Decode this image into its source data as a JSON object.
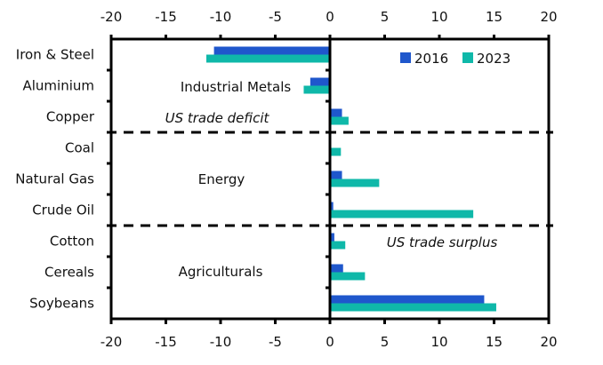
{
  "chart_data": {
    "type": "bar",
    "orientation": "horizontal",
    "title": "",
    "xlabel": "",
    "ylabel": "",
    "xlim": [
      -20,
      20
    ],
    "xticks": [
      -20,
      -15,
      -10,
      -5,
      0,
      5,
      10,
      15,
      20
    ],
    "xtick_labels": [
      "-20",
      "-15",
      "-10",
      "-5",
      "0",
      "5",
      "10",
      "15",
      "20"
    ],
    "grid": false,
    "categories": [
      "Iron & Steel",
      "Aluminium",
      "Copper",
      "Coal",
      "Natural Gas",
      "Crude Oil",
      "Cotton",
      "Cereals",
      "Soybeans"
    ],
    "series": [
      {
        "name": "2016",
        "color": "#1f57cc",
        "values": [
          -10.6,
          -1.8,
          1.1,
          0.0,
          1.1,
          0.3,
          0.4,
          1.2,
          14.1
        ]
      },
      {
        "name": "2023",
        "color": "#0fb8a9",
        "values": [
          -11.3,
          -2.4,
          1.7,
          1.0,
          4.5,
          13.1,
          1.4,
          3.2,
          15.2
        ]
      }
    ],
    "legend": {
      "placement": "top-right",
      "entries": [
        "2016",
        "2023"
      ]
    },
    "groups": [
      {
        "label": "Industrial Metals",
        "categories": [
          "Iron & Steel",
          "Aluminium",
          "Copper"
        ]
      },
      {
        "label": "Energy",
        "categories": [
          "Coal",
          "Natural Gas",
          "Crude Oil"
        ]
      },
      {
        "label": "Agriculturals",
        "categories": [
          "Cotton",
          "Cereals",
          "Soybeans"
        ]
      }
    ],
    "annotations": [
      "US trade deficit",
      "US trade surplus"
    ]
  }
}
